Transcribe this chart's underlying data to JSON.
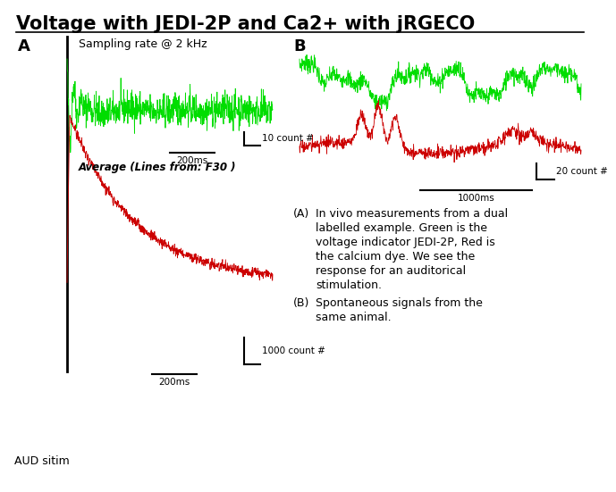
{
  "title": "Voltage with JEDI-2P and Ca2+ with jRGECO",
  "title_fontsize": 15,
  "title_fontweight": "bold",
  "bg_color": "#ffffff",
  "green_color": "#00dd00",
  "red_color": "#cc0000",
  "black_color": "#000000",
  "label_A": "A",
  "label_B": "B",
  "sampling_rate_text": "Sampling rate @ 2 kHz",
  "average_text": "Average (Lines from: F30 )",
  "scale_bar_A_green": "10 count #",
  "scale_bar_A_green_time": "200ms",
  "scale_bar_A_red": "1000 count #",
  "scale_bar_A_red_time": "200ms",
  "scale_bar_B": "20 count #",
  "scale_bar_B_time": "1000ms",
  "aud_stim_text": "AUD sitim",
  "caption_A_marker": "(A)",
  "caption_A_text": "In vivo measurements from a dual\nlabelled example. Green is the\nvoltage indicator JEDI-2P, Red is\nthe calcium dye. We see the\nresponse for an auditorical\nstimulation.",
  "caption_B_marker": "(B)",
  "caption_B_text": "Spontaneous signals from the\nsame animal.",
  "seed_A_green": 42,
  "seed_A_red": 99,
  "seed_B_green": 7,
  "seed_B_red": 17
}
